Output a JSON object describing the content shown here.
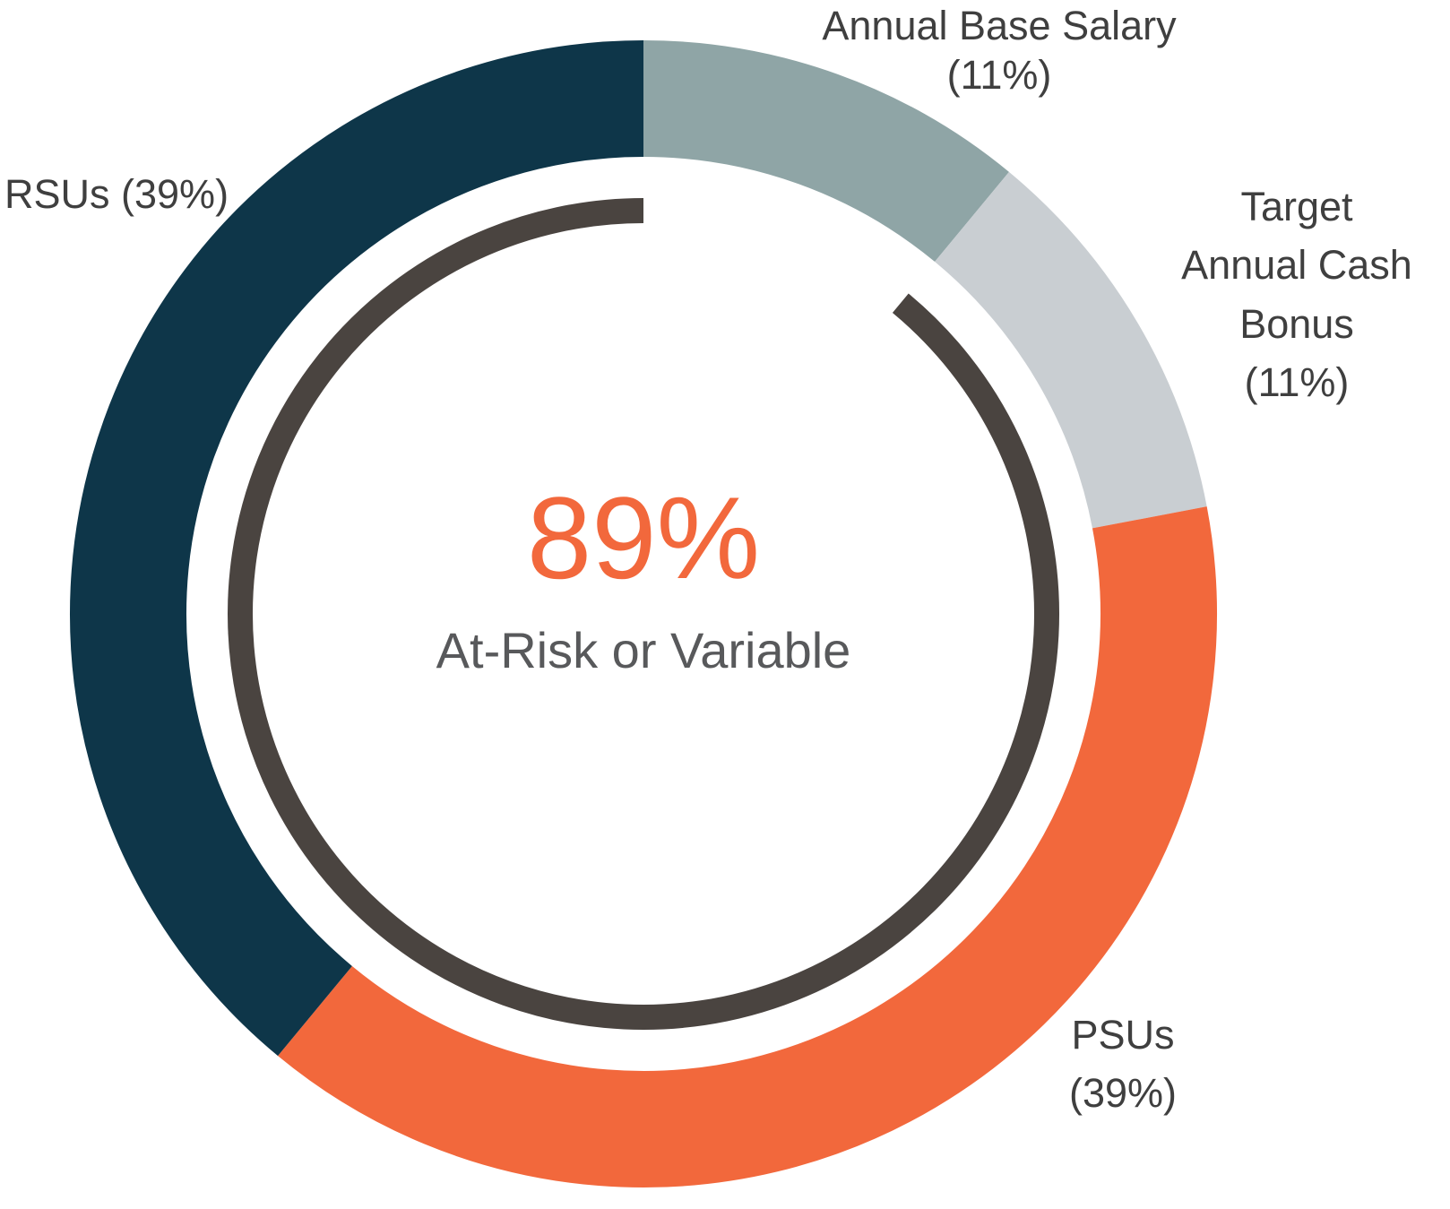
{
  "chart_data": {
    "type": "pie",
    "variant": "donut",
    "title": "",
    "direction": "clockwise",
    "start_angle_deg": 0,
    "background": "#FFFFFF",
    "segments": [
      {
        "label": "Annual Base Salary",
        "value": 11,
        "display": "(11%)",
        "color": "#8FA5A6"
      },
      {
        "label": "Target Annual Cash Bonus",
        "value": 11,
        "display": "(11%)",
        "color": "#C9CED2"
      },
      {
        "label": "PSUs",
        "value": 39,
        "display": "(39%)",
        "color": "#F2683C"
      },
      {
        "label": "RSUs",
        "value": 39,
        "display": "(39%)",
        "color": "#0E3649"
      }
    ],
    "inner_arc": {
      "value": 89,
      "gap_segment": "Annual Base Salary",
      "color": "#4A4440"
    },
    "center": {
      "value": "89%",
      "caption": "At-Risk or Variable",
      "value_color": "#F2683C",
      "caption_color": "#58595B"
    },
    "label_text_color": "#3F3F3F",
    "legend": "none (labels placed around donut)"
  },
  "labels": {
    "annual_base_salary": {
      "lines": [
        "Annual Base Salary",
        "(11%)"
      ]
    },
    "target_annual_cash_bonus": {
      "lines": [
        "Target",
        "Annual Cash",
        "Bonus",
        "(11%)"
      ]
    },
    "rsus": {
      "lines": [
        "RSUs (39%)"
      ]
    },
    "psus": {
      "lines": [
        "PSUs",
        "(39%)"
      ]
    }
  }
}
